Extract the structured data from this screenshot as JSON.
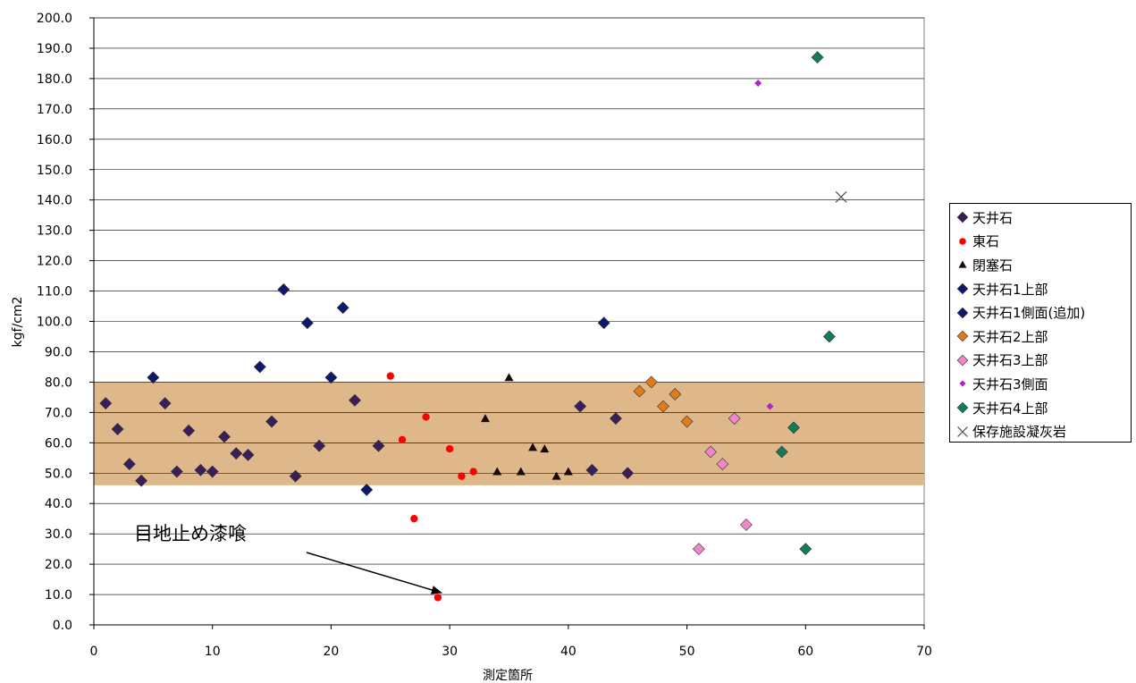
{
  "chart_data": {
    "type": "scatter",
    "ylabel": "kgf/cm2",
    "xlabel": "測定箇所",
    "xlim": [
      0,
      70
    ],
    "ylim": [
      0,
      200
    ],
    "x_ticks": [
      "0",
      "10",
      "20",
      "30",
      "40",
      "50",
      "60",
      "70"
    ],
    "y_ticks": [
      "0.0",
      "10.0",
      "20.0",
      "30.0",
      "40.0",
      "50.0",
      "60.0",
      "70.0",
      "80.0",
      "90.0",
      "100.0",
      "110.0",
      "120.0",
      "130.0",
      "140.0",
      "150.0",
      "160.0",
      "170.0",
      "180.0",
      "190.0",
      "200.0"
    ],
    "grid": "horizontal",
    "plot_background": "#ffffff",
    "highlight_band": {
      "from": 46,
      "to": 80,
      "color": "#deb88b"
    },
    "annotation": {
      "text": "目地止め漆喰",
      "points_to": [
        29,
        10
      ]
    },
    "legend_position": "right",
    "series": [
      {
        "name": "天井石",
        "marker": "diamond",
        "color": "#3a1e5a",
        "points": [
          [
            1,
            73
          ],
          [
            2,
            64.5
          ],
          [
            3,
            53
          ],
          [
            4,
            47.5
          ],
          [
            6,
            73
          ],
          [
            7,
            50.5
          ],
          [
            8,
            64
          ],
          [
            9,
            51
          ],
          [
            10,
            50.5
          ],
          [
            11,
            62
          ],
          [
            12,
            56.5
          ],
          [
            13,
            56
          ],
          [
            15,
            67
          ],
          [
            17,
            49
          ],
          [
            19,
            59
          ],
          [
            22,
            74
          ],
          [
            24,
            59
          ],
          [
            41,
            72
          ],
          [
            42,
            51
          ],
          [
            44,
            68
          ],
          [
            45,
            50
          ]
        ]
      },
      {
        "name": "東石",
        "marker": "circle",
        "color": "#ff0000",
        "points": [
          [
            25,
            82
          ],
          [
            26,
            61
          ],
          [
            27,
            35
          ],
          [
            28,
            68.5
          ],
          [
            29,
            9
          ],
          [
            30,
            58
          ],
          [
            31,
            49
          ],
          [
            32,
            50.5
          ]
        ]
      },
      {
        "name": "閉塞石",
        "marker": "triangle",
        "color": "#1a0a0a",
        "points": [
          [
            33,
            68
          ],
          [
            34,
            50.5
          ],
          [
            35,
            81.5
          ],
          [
            36,
            50.5
          ],
          [
            37,
            58.5
          ],
          [
            38,
            58
          ],
          [
            39,
            49
          ],
          [
            40,
            50.5
          ]
        ]
      },
      {
        "name": "天井石1上部",
        "marker": "diamond",
        "color": "#0d1a6b",
        "points": [
          [
            5,
            81.5
          ],
          [
            14,
            85
          ],
          [
            16,
            110.5
          ],
          [
            18,
            99.5
          ],
          [
            20,
            81.5
          ],
          [
            21,
            104.5
          ],
          [
            23,
            44.5
          ],
          [
            43,
            99.5
          ]
        ]
      },
      {
        "name": "天井石1側面(追加)",
        "marker": "diamond",
        "color": "#0d1a6b",
        "points": []
      },
      {
        "name": "天井石2上部",
        "marker": "diamond",
        "color": "#e07b1c",
        "points": [
          [
            46,
            77
          ],
          [
            47,
            80
          ],
          [
            48,
            72
          ],
          [
            49,
            76
          ],
          [
            50,
            67
          ]
        ]
      },
      {
        "name": "天井石3上部",
        "marker": "diamond",
        "color": "#ee88c8",
        "points": [
          [
            51,
            25
          ],
          [
            52,
            57
          ],
          [
            53,
            53
          ],
          [
            54,
            68
          ],
          [
            55,
            33
          ]
        ]
      },
      {
        "name": "天井石3側面",
        "marker": "diamond-small",
        "color": "#b023c8",
        "points": [
          [
            56,
            178.5
          ],
          [
            57,
            72
          ]
        ]
      },
      {
        "name": "天井石4上部",
        "marker": "diamond",
        "color": "#137a5a",
        "points": [
          [
            58,
            57
          ],
          [
            59,
            65
          ],
          [
            60,
            25
          ],
          [
            61,
            187
          ],
          [
            62,
            95
          ]
        ]
      },
      {
        "name": "保存施設凝灰岩",
        "marker": "x",
        "color": "#555555",
        "points": [
          [
            63,
            141
          ]
        ]
      }
    ]
  }
}
